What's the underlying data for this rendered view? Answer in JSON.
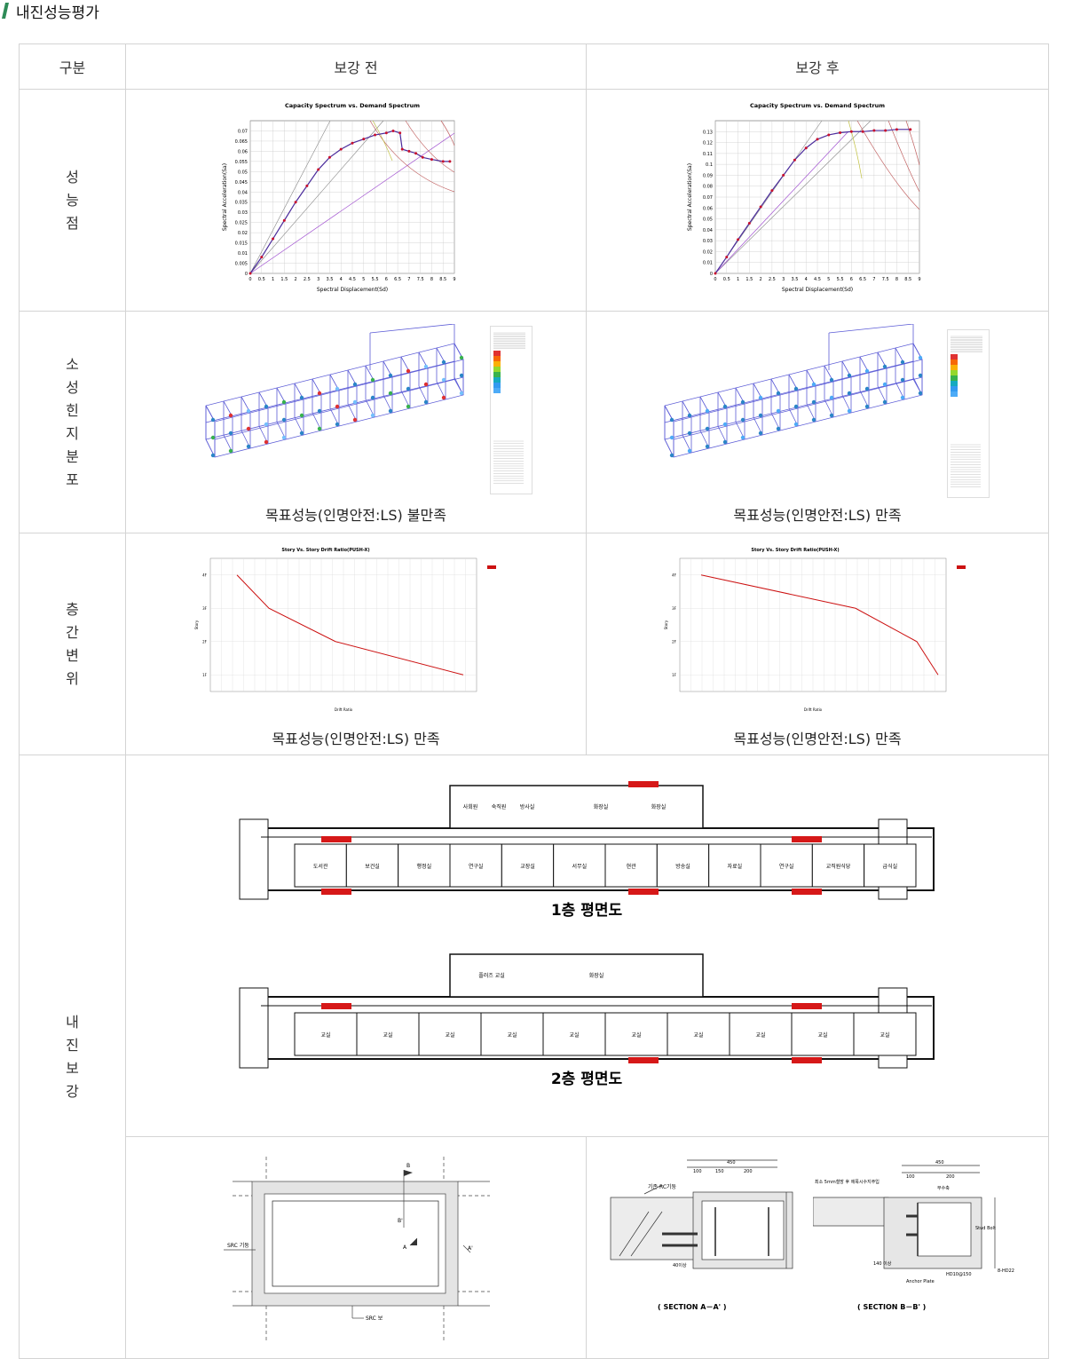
{
  "page": {
    "title": "내진성능평가"
  },
  "table": {
    "headers": [
      "구분",
      "보강 전",
      "보강 후"
    ],
    "rows": {
      "performance_point": "성\n능\n점",
      "hinge": "소\n성\n힌\n지\n분\n포",
      "drift": "층\n간\n변\n위",
      "retrofit": "내\n진\n보\n강"
    },
    "captions": {
      "hinge_before": "목표성능(인명안전:LS) 불만족",
      "hinge_after": "목표성능(인명안전:LS) 만족",
      "drift_before": "목표성능(인명안전:LS) 만족",
      "drift_after": "목표성능(인명안전:LS) 만족"
    }
  },
  "chart_data": [
    {
      "type": "line",
      "title": "Capacity Spectrum vs. Demand Spectrum",
      "xlabel": "Spectral Displacement(Sd)",
      "ylabel": "Spectral Acceleration(Sa)",
      "xlim": [
        0,
        9
      ],
      "ylim": [
        0,
        0.075
      ],
      "xticks": [
        "0",
        "0.5",
        "1",
        "1.5",
        "2",
        "2.5",
        "3",
        "3.5",
        "4",
        "4.5",
        "5",
        "5.5",
        "6",
        "6.5",
        "7",
        "7.5",
        "8",
        "8.5",
        "9"
      ],
      "yticks": [
        "0",
        "0.005",
        "0.01",
        "0.015",
        "0.02",
        "0.025",
        "0.03",
        "0.035",
        "0.04",
        "0.045",
        "0.05",
        "0.055",
        "0.06",
        "0.065",
        "0.07"
      ],
      "series": [
        {
          "x": [
            0,
            0.5,
            1,
            1.5,
            2,
            2.5,
            3,
            3.5,
            4,
            4.5,
            5,
            5.5,
            6,
            6.3,
            6.6,
            6.7,
            7,
            7.3,
            7.6,
            8,
            8.5,
            8.8
          ],
          "y": [
            0,
            0.008,
            0.017,
            0.026,
            0.035,
            0.043,
            0.051,
            0.057,
            0.061,
            0.064,
            0.066,
            0.068,
            0.069,
            0.07,
            0.069,
            0.061,
            0.06,
            0.059,
            0.057,
            0.056,
            0.055,
            0.055
          ]
        }
      ]
    },
    {
      "type": "line",
      "title": "Capacity Spectrum vs. Demand Spectrum",
      "xlabel": "Spectral Displacement(Sd)",
      "ylabel": "Spectral Acceleration(Sa)",
      "xlim": [
        0,
        9
      ],
      "ylim": [
        0,
        0.14
      ],
      "xticks": [
        "0",
        "0.5",
        "1",
        "1.5",
        "2",
        "2.5",
        "3",
        "3.5",
        "4",
        "4.5",
        "5",
        "5.5",
        "6",
        "6.5",
        "7",
        "7.5",
        "8",
        "8.5",
        "9"
      ],
      "yticks": [
        "0",
        "0.01",
        "0.02",
        "0.03",
        "0.04",
        "0.05",
        "0.06",
        "0.07",
        "0.08",
        "0.09",
        "0.1",
        "0.11",
        "0.12",
        "0.13"
      ],
      "series": [
        {
          "x": [
            0,
            0.5,
            1,
            1.5,
            2,
            2.5,
            3,
            3.5,
            4,
            4.5,
            5,
            5.5,
            6,
            6.5,
            7,
            7.5,
            8,
            8.6
          ],
          "y": [
            0,
            0.015,
            0.031,
            0.046,
            0.061,
            0.076,
            0.09,
            0.104,
            0.115,
            0.123,
            0.127,
            0.129,
            0.13,
            0.13,
            0.131,
            0.131,
            0.132,
            0.132
          ]
        }
      ]
    },
    {
      "type": "line",
      "title": "Story Vs. Story Drift Ratio(PUSH-X)",
      "xlabel": "Drift Ratio",
      "ylabel": "Story",
      "categories": [
        "4F",
        "3F",
        "2F",
        "1F"
      ],
      "legend": "top-right",
      "series": [
        {
          "x": [
            0.1,
            0.22,
            0.47,
            0.95
          ],
          "y": [
            4,
            3,
            2,
            1
          ]
        }
      ]
    },
    {
      "type": "line",
      "title": "Story Vs. Story Drift Ratio(PUSH-X)",
      "xlabel": "Drift Ratio",
      "ylabel": "Story",
      "categories": [
        "4F",
        "3F",
        "2F",
        "1F"
      ],
      "legend": "top-right",
      "series": [
        {
          "x": [
            0.08,
            0.66,
            0.89,
            0.97
          ],
          "y": [
            4,
            3,
            2,
            1
          ]
        }
      ]
    }
  ],
  "floor_plans": {
    "floor1_title": "1층 평면도",
    "floor2_title": "2층 평면도",
    "floor1_top_rooms": [
      "사회원",
      "숙직원",
      "방사실",
      "화장실",
      "화장실"
    ],
    "floor1_rooms": [
      "도서관",
      "보건실",
      "행정실",
      "연구실",
      "교장실",
      "서무실",
      "현관",
      "방송실",
      "자료실",
      "연구실",
      "교직원식당",
      "급식실"
    ],
    "floor2_top_rooms": [
      "플러즈 교실",
      "화장실"
    ],
    "floor2_rooms": [
      "교실",
      "교실",
      "교실",
      "교실",
      "교실",
      "교실",
      "교실",
      "교실",
      "교실",
      "교실"
    ]
  },
  "details": {
    "plan_label_column": "SRC 기둥",
    "plan_label_beam": "SRC 보",
    "markers": [
      "A",
      "A'",
      "B",
      "B'"
    ],
    "section_a": "( SECTION A－A' )",
    "section_b": "( SECTION B－B' )",
    "dim_450": "450",
    "dim_100": "100",
    "dim_150": "150",
    "dim_200": "200",
    "label_existing": "기존 RC기둥",
    "label_steel": "최소 5mm철방 후 에폭시수지주입",
    "label_stud": "Stud Bolt",
    "label_anchor": "Anchor Plate",
    "label_hd": "HD10@150",
    "label_8hd": "8-HD22",
    "label_140": "140 이상",
    "label_mortar": "무수축",
    "label_over": "40이상"
  }
}
